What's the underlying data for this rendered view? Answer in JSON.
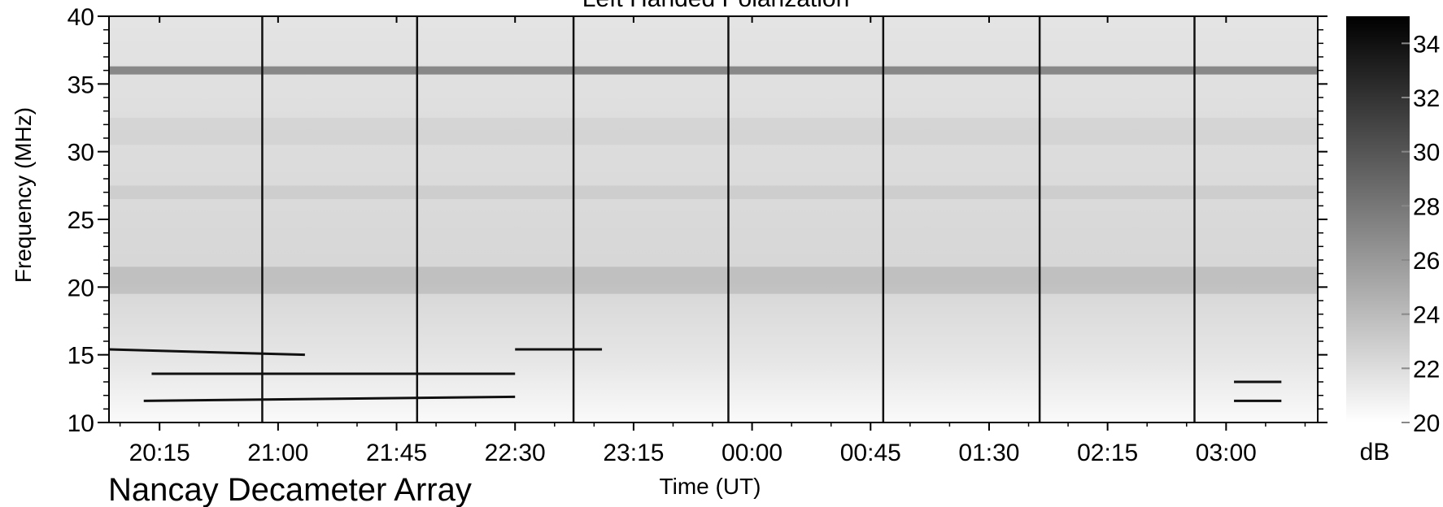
{
  "chart_data": {
    "type": "heatmap",
    "title": "Left Handed Polarization",
    "xlabel": "Time (UT)",
    "ylabel": "Frequency (MHz)",
    "x_ticks": [
      "20:15",
      "21:00",
      "21:45",
      "22:30",
      "23:15",
      "00:00",
      "00:45",
      "01:30",
      "02:15",
      "03:00"
    ],
    "x_tick_hours": [
      20.25,
      21.0,
      21.75,
      22.5,
      23.25,
      24.0,
      24.75,
      25.5,
      26.25,
      27.0
    ],
    "xlim_hours": [
      19.93,
      27.58
    ],
    "ylim": [
      10,
      40
    ],
    "y_ticks": [
      10,
      15,
      20,
      25,
      30,
      35,
      40
    ],
    "colorbar": {
      "label": "dB",
      "range": [
        20,
        35
      ],
      "ticks": [
        20,
        22,
        24,
        26,
        28,
        30,
        32,
        34
      ],
      "colormap": [
        "#ffffff",
        "#000000"
      ]
    },
    "vertical_dropouts_hours": [
      20.9,
      21.88,
      22.87,
      23.85,
      24.83,
      25.82,
      26.8
    ],
    "interference_band_mhz": 36,
    "drift_features": [
      {
        "t0": 19.93,
        "t1": 21.17,
        "f0": 15.4,
        "f1": 15.0
      },
      {
        "t0": 20.2,
        "t1": 22.5,
        "f0": 13.6,
        "f1": 13.6
      },
      {
        "t0": 20.15,
        "t1": 22.5,
        "f0": 11.6,
        "f1": 11.9
      },
      {
        "t0": 22.5,
        "t1": 23.05,
        "f0": 15.4,
        "f1": 15.4
      },
      {
        "t0": 27.05,
        "t1": 27.35,
        "f0": 13.0,
        "f1": 13.0
      },
      {
        "t0": 27.05,
        "t1": 27.35,
        "f0": 11.6,
        "f1": 11.6
      }
    ]
  },
  "footer": {
    "caption": "Nancay Decameter Array"
  }
}
